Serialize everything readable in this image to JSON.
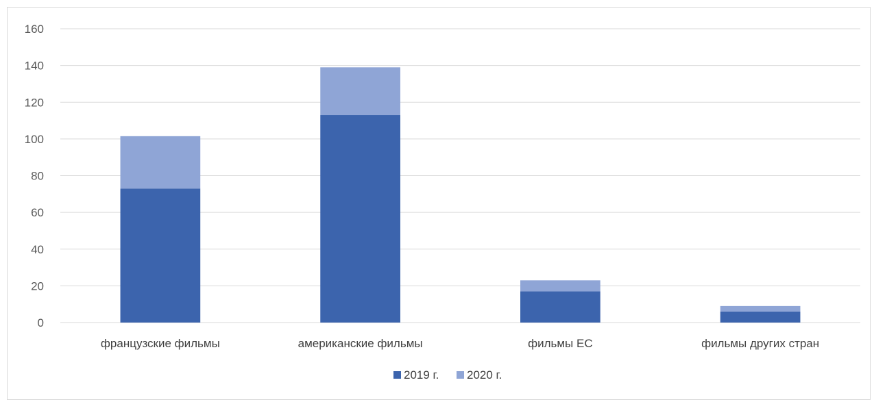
{
  "chart_data": {
    "type": "bar",
    "stacked": true,
    "categories": [
      "французские фильмы",
      "американские фильмы",
      "фильмы ЕС",
      "фильмы других стран"
    ],
    "series": [
      {
        "name": "2019 г.",
        "color": "#3c64ad",
        "values": [
          73,
          113,
          17,
          6
        ]
      },
      {
        "name": "2020 г.",
        "color": "#8fa5d6",
        "values": [
          28.5,
          26,
          6,
          3
        ]
      }
    ],
    "ylim": [
      0,
      160
    ],
    "yticks": [
      "0",
      "20",
      "40",
      "60",
      "80",
      "100",
      "120",
      "140",
      "160"
    ],
    "grid": true,
    "legend_position": "bottom"
  }
}
